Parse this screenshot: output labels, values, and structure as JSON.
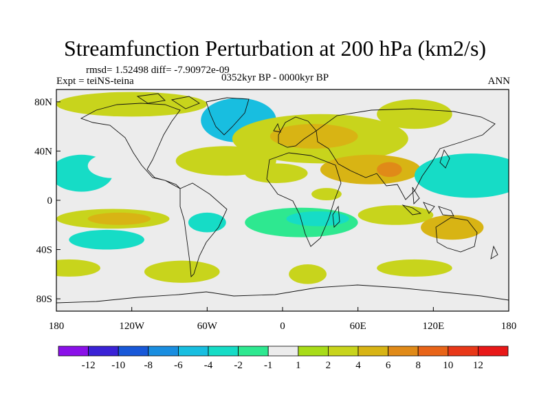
{
  "chart_data": {
    "type": "heatmap",
    "title": "Streamfunction Perturbation at 200 hPa (km2/s)",
    "stats": "rmsd= 1.52498 diff= -7.90972e-09",
    "left_label": "Expt = teiNS-teina",
    "center_label": "0352kyr BP - 0000kyr BP",
    "right_label": "ANN",
    "xlim": [
      -180,
      180
    ],
    "ylim": [
      -90,
      90
    ],
    "x_ticks": [
      {
        "value": -180,
        "label": "180"
      },
      {
        "value": -120,
        "label": "120W"
      },
      {
        "value": -60,
        "label": "60W"
      },
      {
        "value": 0,
        "label": "0"
      },
      {
        "value": 60,
        "label": "60E"
      },
      {
        "value": 120,
        "label": "120E"
      },
      {
        "value": 180,
        "label": "180"
      }
    ],
    "y_ticks": [
      {
        "value": 80,
        "label": "80N"
      },
      {
        "value": 40,
        "label": "40N"
      },
      {
        "value": 0,
        "label": "0"
      },
      {
        "value": -40,
        "label": "40S"
      },
      {
        "value": -80,
        "label": "80S"
      }
    ],
    "colorbar": {
      "labels": [
        "-12",
        "-10",
        "-8",
        "-6",
        "-4",
        "-2",
        "-1",
        "1",
        "2",
        "4",
        "6",
        "8",
        "10",
        "12"
      ],
      "colors": [
        "#8a10e8",
        "#3a22d6",
        "#1858d8",
        "#1a8ee0",
        "#18bee0",
        "#16dcc6",
        "#2ee890",
        "#ececec",
        "#a8dc18",
        "#c8d41c",
        "#d8b414",
        "#e08a18",
        "#e86418",
        "#e83818",
        "#e81818"
      ]
    },
    "regions": [
      {
        "name": "north-atlantic-low",
        "lon": -35,
        "lat": 65,
        "rlon": 30,
        "rlat": 18,
        "value": -5
      },
      {
        "name": "north-atlantic-low-core",
        "lon": -35,
        "lat": 62,
        "rlon": 18,
        "rlat": 12,
        "value": -6
      },
      {
        "name": "arctic-canada-high",
        "lon": -120,
        "lat": 78,
        "rlon": 60,
        "rlat": 10,
        "value": 2
      },
      {
        "name": "eurasia-high",
        "lon": 30,
        "lat": 50,
        "rlon": 70,
        "rlat": 20,
        "value": 3
      },
      {
        "name": "eurasia-high-core",
        "lon": 25,
        "lat": 52,
        "rlon": 35,
        "rlat": 10,
        "value": 4
      },
      {
        "name": "siberia-high",
        "lon": 105,
        "lat": 70,
        "rlon": 30,
        "rlat": 12,
        "value": 2
      },
      {
        "name": "atlantic-subtropic-high",
        "lon": -45,
        "lat": 32,
        "rlon": 40,
        "rlat": 12,
        "value": 3
      },
      {
        "name": "n-africa-high",
        "lon": -5,
        "lat": 22,
        "rlon": 25,
        "rlat": 8,
        "value": 2
      },
      {
        "name": "asia-subtropic-high",
        "lon": 70,
        "lat": 25,
        "rlon": 40,
        "rlat": 12,
        "value": 4
      },
      {
        "name": "asia-subtropic-high-core",
        "lon": 85,
        "lat": 25,
        "rlon": 10,
        "rlat": 6,
        "value": 6
      },
      {
        "name": "pacific-north-low",
        "lon": 150,
        "lat": 20,
        "rlon": 45,
        "rlat": 18,
        "value": -3
      },
      {
        "name": "pacific-north-low-east",
        "lon": -160,
        "lat": 22,
        "rlon": 25,
        "rlat": 15,
        "value": -3
      },
      {
        "name": "e-pacific-n-green",
        "lon": -135,
        "lat": 28,
        "rlon": 20,
        "rlat": 10,
        "value": -1
      },
      {
        "name": "s-pacific-band",
        "lon": -135,
        "lat": -15,
        "rlon": 45,
        "rlat": 8,
        "value": 2
      },
      {
        "name": "s-pacific-band-core",
        "lon": -130,
        "lat": -15,
        "rlon": 25,
        "rlat": 5,
        "value": 4
      },
      {
        "name": "s-america-low",
        "lon": -60,
        "lat": -18,
        "rlon": 15,
        "rlat": 8,
        "value": -3
      },
      {
        "name": "s-atlantic-low",
        "lon": 15,
        "lat": -18,
        "rlon": 45,
        "rlat": 12,
        "value": -2
      },
      {
        "name": "s-atlantic-low-core",
        "lon": 28,
        "lat": -15,
        "rlon": 25,
        "rlat": 6,
        "value": -3
      },
      {
        "name": "indian-ocean-high",
        "lon": 90,
        "lat": -12,
        "rlon": 30,
        "rlat": 8,
        "value": 2
      },
      {
        "name": "australia-high",
        "lon": 135,
        "lat": -22,
        "rlon": 25,
        "rlat": 10,
        "value": 4
      },
      {
        "name": "s-pacific-low",
        "lon": -140,
        "lat": -32,
        "rlon": 30,
        "rlat": 8,
        "value": -3
      },
      {
        "name": "s-pacific-low-core",
        "lon": -138,
        "lat": -32,
        "rlon": 15,
        "rlat": 4,
        "value": -4
      },
      {
        "name": "s-ocean-high-pacific",
        "lon": -170,
        "lat": -55,
        "rlon": 25,
        "rlat": 7,
        "value": 2
      },
      {
        "name": "s-ocean-high-drake",
        "lon": -80,
        "lat": -58,
        "rlon": 30,
        "rlat": 9,
        "value": 2
      },
      {
        "name": "s-ocean-high-atlantic",
        "lon": 20,
        "lat": -60,
        "rlon": 15,
        "rlat": 8,
        "value": 2
      },
      {
        "name": "s-ocean-high-indian",
        "lon": 105,
        "lat": -55,
        "rlon": 30,
        "rlat": 7,
        "value": 2
      },
      {
        "name": "e-africa-high",
        "lon": 35,
        "lat": 5,
        "rlon": 12,
        "rlat": 5,
        "value": 2
      }
    ]
  }
}
